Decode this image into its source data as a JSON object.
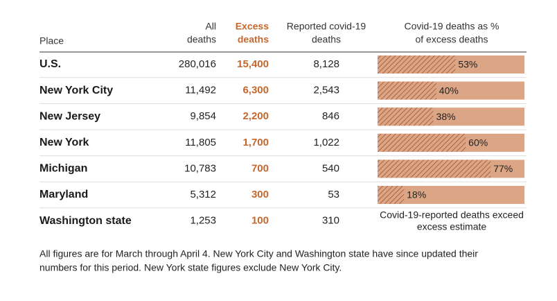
{
  "table": {
    "header": {
      "place": "Place",
      "all_deaths": [
        "All",
        "deaths"
      ],
      "excess_deaths": [
        "Excess",
        "deaths"
      ],
      "reported": [
        "Reported covid-19",
        "deaths"
      ],
      "pct": [
        "Covid-19 deaths as %",
        "of excess deaths"
      ]
    },
    "rows": [
      {
        "place": "U.S.",
        "all": "280,016",
        "excess": "15,400",
        "reported": "8,128",
        "pct": {
          "value": 53,
          "label": "53%"
        }
      },
      {
        "place": "New York City",
        "all": "11,492",
        "excess": "6,300",
        "reported": "2,543",
        "pct": {
          "value": 40,
          "label": "40%"
        }
      },
      {
        "place": "New Jersey",
        "all": "9,854",
        "excess": "2,200",
        "reported": "846",
        "pct": {
          "value": 38,
          "label": "38%"
        }
      },
      {
        "place": "New York",
        "all": "11,805",
        "excess": "1,700",
        "reported": "1,022",
        "pct": {
          "value": 60,
          "label": "60%"
        }
      },
      {
        "place": "Michigan",
        "all": "10,783",
        "excess": "700",
        "reported": "540",
        "pct": {
          "value": 77,
          "label": "77%"
        }
      },
      {
        "place": "Maryland",
        "all": "5,312",
        "excess": "300",
        "reported": "53",
        "pct": {
          "value": 18,
          "label": "18%"
        }
      },
      {
        "place": "Washington state",
        "all": "1,253",
        "excess": "100",
        "reported": "310",
        "note": [
          "Covid-19-reported deaths exceed",
          "excess estimate"
        ]
      }
    ],
    "footnote": [
      "All figures are for March through April 4. New York City and Washington state have since updated their",
      "numbers for this period. New York state figures exclude New York City."
    ]
  }
}
